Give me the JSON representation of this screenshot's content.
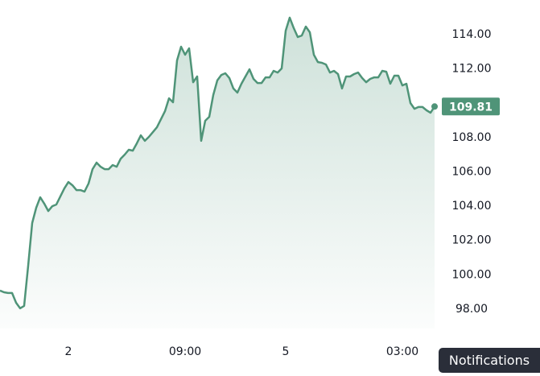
{
  "chart_data": {
    "type": "area",
    "categories": [
      null,
      null,
      null,
      null,
      null,
      null,
      null,
      null,
      null,
      null,
      null,
      null,
      null,
      null,
      null,
      null,
      null,
      "2",
      null,
      null,
      null,
      null,
      null,
      null,
      null,
      null,
      null,
      null,
      null,
      null,
      null,
      null,
      null,
      null,
      null,
      null,
      null,
      null,
      null,
      null,
      null,
      null,
      null,
      null,
      null,
      null,
      "09:00",
      null,
      null,
      null,
      null,
      null,
      null,
      null,
      null,
      null,
      null,
      null,
      null,
      null,
      null,
      null,
      null,
      null,
      null,
      null,
      null,
      null,
      null,
      null,
      null,
      "5",
      null,
      null,
      null,
      null,
      null,
      null,
      null,
      null,
      null,
      null,
      null,
      null,
      null,
      null,
      null,
      null,
      null,
      null,
      null,
      null,
      null,
      null,
      null,
      null,
      null,
      null,
      null,
      null,
      "03:00",
      null,
      null,
      null,
      null,
      null,
      null,
      null,
      null
    ],
    "series": [
      {
        "color": "#4f9478",
        "values": [
          99.08,
          98.98,
          98.94,
          98.94,
          98.37,
          98.05,
          98.19,
          100.53,
          103.02,
          103.91,
          104.52,
          104.15,
          103.72,
          104.0,
          104.1,
          104.57,
          105.04,
          105.41,
          105.22,
          104.94,
          104.94,
          104.85,
          105.32,
          106.16,
          106.54,
          106.3,
          106.16,
          106.16,
          106.4,
          106.3,
          106.77,
          107.01,
          107.29,
          107.24,
          107.66,
          108.13,
          107.81,
          108.04,
          108.32,
          108.6,
          109.07,
          109.54,
          110.29,
          110.06,
          112.5,
          113.3,
          112.83,
          113.2,
          111.23,
          111.56,
          107.81,
          108.98,
          109.21,
          110.48,
          111.33,
          111.65,
          111.75,
          111.47,
          110.86,
          110.62,
          111.14,
          111.56,
          111.98,
          111.42,
          111.18,
          111.18,
          111.51,
          111.51,
          111.89,
          111.79,
          112.03,
          114.23,
          114.99,
          114.38,
          113.86,
          113.95,
          114.47,
          114.14,
          112.83,
          112.4,
          112.36,
          112.26,
          111.79,
          111.89,
          111.7,
          110.86,
          111.56,
          111.56,
          111.7,
          111.79,
          111.47,
          111.23,
          111.42,
          111.51,
          111.51,
          111.89,
          111.84,
          111.14,
          111.61,
          111.61,
          111.04,
          111.14,
          110.01,
          109.68,
          109.78,
          109.78,
          109.59,
          109.45,
          109.81
        ]
      }
    ],
    "ylim": [
      96.87,
      116.02
    ],
    "yticks": [
      {
        "value": 98,
        "label": "98.00"
      },
      {
        "value": 100,
        "label": "100.00"
      },
      {
        "value": 102,
        "label": "102.00"
      },
      {
        "value": 104,
        "label": "104.00"
      },
      {
        "value": 106,
        "label": "106.00"
      },
      {
        "value": 108,
        "label": "108.00"
      },
      {
        "value": 110,
        "label": "110.00"
      },
      {
        "value": 112,
        "label": "112.00"
      },
      {
        "value": 114,
        "label": "114.00"
      }
    ],
    "grid": false
  },
  "ui": {
    "notifications": "Notifications"
  }
}
